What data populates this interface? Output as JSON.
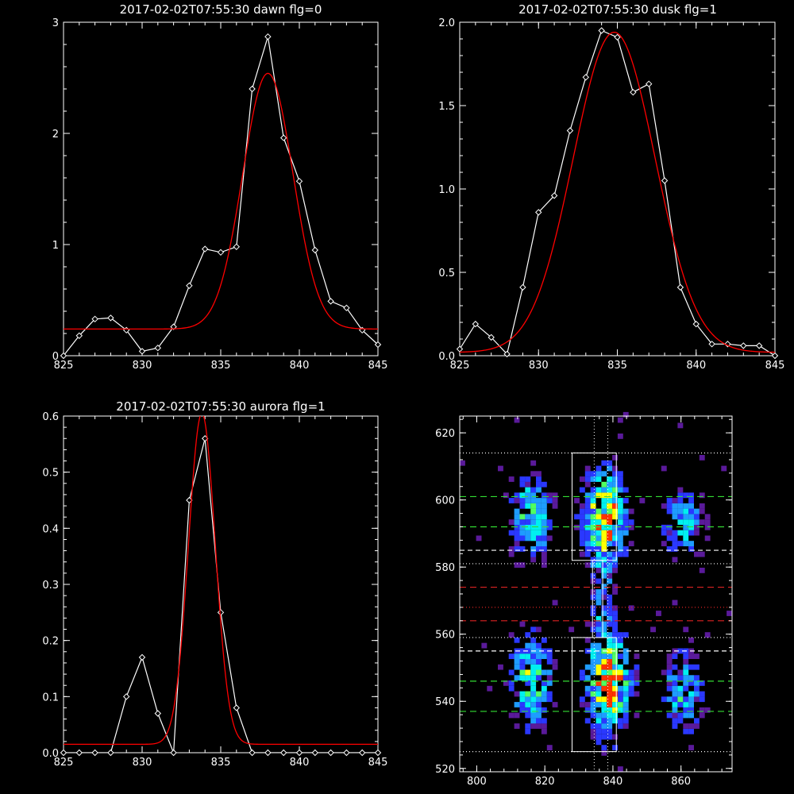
{
  "chart_data": [
    {
      "type": "line",
      "title": "2017-02-02T07:55:30 dawn flg=0",
      "xlim": [
        825,
        845
      ],
      "ylim": [
        0,
        3
      ],
      "xticks": [
        825,
        830,
        835,
        840,
        845
      ],
      "yticks": [
        0,
        1,
        2,
        3
      ],
      "ytick_labels": [
        "0",
        "1",
        "2",
        "3"
      ],
      "x": [
        825,
        826,
        827,
        828,
        829,
        830,
        831,
        832,
        833,
        834,
        835,
        836,
        837,
        838,
        839,
        840,
        841,
        842,
        843,
        844,
        845
      ],
      "series": [
        {
          "color": "#ffffff",
          "marker": "diamond",
          "values": [
            0.0,
            0.18,
            0.33,
            0.34,
            0.23,
            0.04,
            0.07,
            0.26,
            0.63,
            0.96,
            0.93,
            0.98,
            2.4,
            2.87,
            1.96,
            1.57,
            0.95,
            0.49,
            0.43,
            0.23,
            0.1
          ]
        },
        {
          "color": "#ff0000",
          "fit": {
            "amp": 2.3,
            "mu": 838.0,
            "sigma": 1.6,
            "base": 0.24
          }
        }
      ],
      "grid": false
    },
    {
      "type": "line",
      "title": "2017-02-02T07:55:30 dusk flg=1",
      "xlim": [
        825,
        845
      ],
      "ylim": [
        0,
        2
      ],
      "xticks": [
        825,
        830,
        835,
        840,
        845
      ],
      "yticks": [
        0,
        0.5,
        1.0,
        1.5,
        2.0
      ],
      "ytick_labels": [
        "0.0",
        "0.5",
        "1.0",
        "1.5",
        "2.0"
      ],
      "x": [
        825,
        826,
        827,
        828,
        829,
        830,
        831,
        832,
        833,
        834,
        835,
        836,
        837,
        838,
        839,
        840,
        841,
        842,
        843,
        844,
        845
      ],
      "series": [
        {
          "color": "#ffffff",
          "marker": "diamond",
          "values": [
            0.04,
            0.19,
            0.11,
            0.01,
            0.41,
            0.86,
            0.96,
            1.35,
            1.67,
            1.95,
            1.91,
            1.58,
            1.63,
            1.05,
            0.41,
            0.19,
            0.07,
            0.07,
            0.06,
            0.06,
            0.0
          ]
        },
        {
          "color": "#ff0000",
          "fit": {
            "amp": 1.92,
            "mu": 834.8,
            "sigma": 2.6,
            "base": 0.02
          }
        }
      ],
      "grid": false
    },
    {
      "type": "line",
      "title": "2017-02-02T07:55:30 aurora flg=1",
      "xlim": [
        825,
        845
      ],
      "ylim": [
        0,
        0.6
      ],
      "xticks": [
        825,
        830,
        835,
        840,
        845
      ],
      "yticks": [
        0,
        0.1,
        0.2,
        0.3,
        0.4,
        0.5,
        0.6
      ],
      "ytick_labels": [
        "0.0",
        "0.1",
        "0.2",
        "0.3",
        "0.4",
        "0.5",
        "0.6"
      ],
      "x": [
        825,
        826,
        827,
        828,
        829,
        830,
        831,
        832,
        833,
        834,
        835,
        836,
        837,
        838,
        839,
        840,
        841,
        842,
        843,
        844,
        845
      ],
      "series": [
        {
          "color": "#ffffff",
          "marker": "diamond",
          "values": [
            0,
            0,
            0,
            0,
            0.1,
            0.17,
            0.07,
            0,
            0.45,
            0.56,
            0.25,
            0.08,
            0,
            0,
            0,
            0,
            0,
            0,
            0,
            0,
            0
          ]
        },
        {
          "color": "#ff0000",
          "fit": {
            "amp": 0.59,
            "mu": 833.8,
            "sigma": 0.85,
            "base": 0.015
          }
        }
      ],
      "grid": false
    },
    {
      "type": "heatmap",
      "xlim": [
        795,
        875
      ],
      "ylim": [
        519,
        625
      ],
      "xticks": [
        800,
        820,
        840,
        860
      ],
      "yticks": [
        520,
        540,
        560,
        580,
        600,
        620
      ],
      "colormap": [
        "#5a1a9a",
        "#2a38ff",
        "#1e9cff",
        "#00f0f0",
        "#50ff60",
        "#ffff00",
        "#ff3300"
      ],
      "blobs": [
        {
          "x": 815,
          "y": 594,
          "sx": 4,
          "sy": 8,
          "w": 1.0
        },
        {
          "x": 837,
          "y": 594,
          "sx": 4,
          "sy": 9,
          "w": 1.6
        },
        {
          "x": 860,
          "y": 592,
          "sx": 4,
          "sy": 7,
          "w": 0.7
        },
        {
          "x": 815,
          "y": 545,
          "sx": 4,
          "sy": 9,
          "w": 1.1
        },
        {
          "x": 838,
          "y": 545,
          "sx": 4,
          "sy": 10,
          "w": 1.7
        },
        {
          "x": 860,
          "y": 542,
          "sx": 4,
          "sy": 8,
          "w": 0.8
        },
        {
          "x": 836,
          "y": 570,
          "sx": 2,
          "sy": 8,
          "w": 0.5
        }
      ],
      "boxes": [
        {
          "x0": 828,
          "x1": 841,
          "y0": 582,
          "y1": 614
        },
        {
          "x0": 828,
          "x1": 841,
          "y0": 525,
          "y1": 559
        },
        {
          "x0": 834,
          "x1": 837,
          "y0": 559,
          "y1": 582
        }
      ],
      "hlines": [
        {
          "y": 614,
          "color": "#ffffff",
          "dash": "1,3"
        },
        {
          "y": 601,
          "color": "#33dd33",
          "dash": "8,5"
        },
        {
          "y": 592,
          "color": "#33dd33",
          "dash": "8,5"
        },
        {
          "y": 585,
          "color": "#ffffff",
          "dash": "6,4"
        },
        {
          "y": 581,
          "color": "#ffffff",
          "dash": "1,3"
        },
        {
          "y": 574,
          "color": "#dd2222",
          "dash": "8,5"
        },
        {
          "y": 568,
          "color": "#dd2222",
          "dash": "1,3"
        },
        {
          "y": 564,
          "color": "#dd2222",
          "dash": "8,5"
        },
        {
          "y": 559,
          "color": "#ffffff",
          "dash": "1,3"
        },
        {
          "y": 555,
          "color": "#ffffff",
          "dash": "6,4"
        },
        {
          "y": 546,
          "color": "#33dd33",
          "dash": "8,5"
        },
        {
          "y": 537,
          "color": "#33dd33",
          "dash": "8,5"
        },
        {
          "y": 525,
          "color": "#ffffff",
          "dash": "1,3"
        }
      ],
      "vlines": [
        {
          "x": 834.5,
          "color": "#ffffff",
          "dash": "1,3"
        },
        {
          "x": 838.5,
          "color": "#ffffff",
          "dash": "1,3"
        }
      ]
    }
  ]
}
